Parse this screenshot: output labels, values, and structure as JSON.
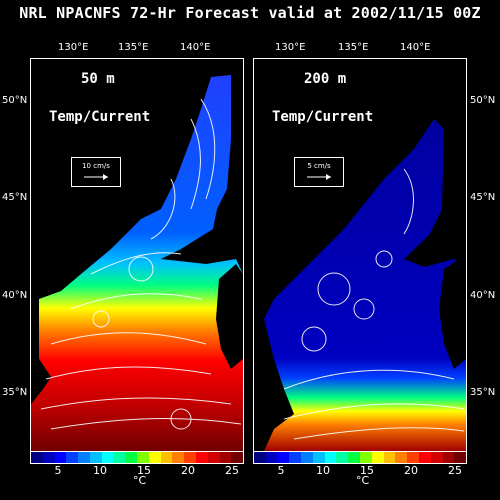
{
  "title": "NRL NPACNFS 72-Hr Forecast valid at 2002/11/15 00Z",
  "lon_ticks": [
    "130°E",
    "135°E",
    "140°E"
  ],
  "lat_ticks": [
    "50°N",
    "45°N",
    "40°N",
    "35°N"
  ],
  "panels": [
    {
      "depth": "50 m",
      "variable": "Temp/Current",
      "ref_label": "10 cm/s"
    },
    {
      "depth": "200 m",
      "variable": "Temp/Current",
      "ref_label": "5 cm/s"
    }
  ],
  "colorbar": {
    "ticks": [
      "5",
      "10",
      "15",
      "20",
      "25"
    ],
    "unit": "°C",
    "colors": [
      "#000080",
      "#0000c0",
      "#0000ff",
      "#0040ff",
      "#0080ff",
      "#00c0ff",
      "#00ffff",
      "#00ffa0",
      "#00ff40",
      "#80ff00",
      "#ffff00",
      "#ffc000",
      "#ff8000",
      "#ff4000",
      "#ff0000",
      "#d00000",
      "#a00000",
      "#700000"
    ]
  },
  "map_colors": {
    "background": "#000000",
    "land": "#000000"
  }
}
